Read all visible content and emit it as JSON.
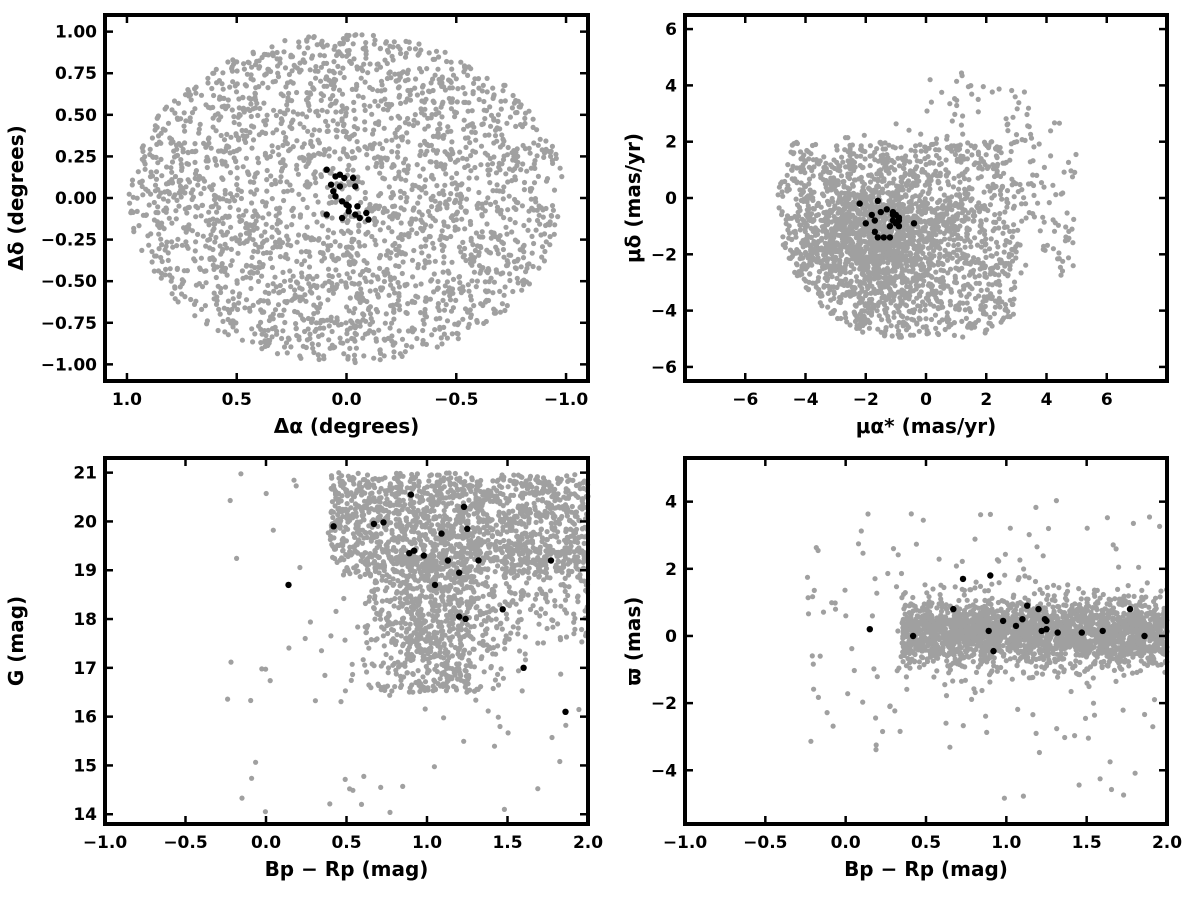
{
  "colors": {
    "field": "#a0a0a0",
    "members": "#000000"
  },
  "chart_data": [
    {
      "type": "scatter",
      "xlabel": "Δα (degrees)",
      "ylabel": "Δδ (degrees)",
      "xlim": [
        1.1,
        -1.1
      ],
      "ylim": [
        -1.1,
        1.1
      ],
      "xticks": [
        "1.0",
        "0.5",
        "0.0",
        "−0.5",
        "−1.0"
      ],
      "xtick_values": [
        1.0,
        0.5,
        0.0,
        -0.5,
        -1.0
      ],
      "yticks": [
        "−1.00",
        "−0.75",
        "−0.50",
        "−0.25",
        "0.00",
        "0.25",
        "0.50",
        "0.75",
        "1.00"
      ],
      "ytick_values": [
        -1.0,
        -0.75,
        -0.5,
        -0.25,
        0.0,
        0.25,
        0.5,
        0.75,
        1.0
      ],
      "series": [
        {
          "role": "field",
          "n_points": 2500,
          "distribution": "uniform disk",
          "center": [
            0,
            0
          ],
          "radius": 1.0
        },
        {
          "role": "members",
          "points": [
            [
              0.09,
              0.17
            ],
            [
              0.05,
              0.13
            ],
            [
              0.03,
              0.14
            ],
            [
              0.01,
              0.12
            ],
            [
              -0.03,
              0.12
            ],
            [
              0.07,
              0.08
            ],
            [
              0.03,
              0.07
            ],
            [
              0.06,
              0.04
            ],
            [
              0.05,
              0.01
            ],
            [
              0.02,
              -0.02
            ],
            [
              -0.01,
              -0.05
            ],
            [
              0.0,
              -0.04
            ],
            [
              -0.01,
              -0.08
            ],
            [
              -0.04,
              -0.1
            ],
            [
              -0.06,
              -0.12
            ],
            [
              -0.09,
              -0.09
            ],
            [
              -0.1,
              -0.13
            ],
            [
              -0.04,
              0.07
            ],
            [
              0.09,
              -0.1
            ],
            [
              0.02,
              -0.12
            ],
            [
              -0.05,
              -0.05
            ]
          ]
        }
      ]
    },
    {
      "type": "scatter",
      "xlabel": "μα* (mas/yr)",
      "ylabel": "μδ (mas/yr)",
      "xlim": [
        -8,
        8
      ],
      "ylim": [
        -6.5,
        6.5
      ],
      "xticks": [
        "−6",
        "−4",
        "−2",
        "0",
        "2",
        "4",
        "6"
      ],
      "xtick_values": [
        -6,
        -4,
        -2,
        0,
        2,
        4,
        6
      ],
      "yticks": [
        "−6",
        "−4",
        "−2",
        "0",
        "2",
        "4",
        "6"
      ],
      "ytick_values": [
        -6,
        -4,
        -2,
        0,
        2,
        4,
        6
      ],
      "series": [
        {
          "role": "field",
          "n_points": 2700,
          "distribution": "dense clump near (-1.5,-1.5), bounded by circle r=5 centred at (0,-0.3), sparse tail to (4.5,4.5)"
        },
        {
          "role": "members",
          "points": [
            [
              -2.2,
              -0.2
            ],
            [
              -1.6,
              -0.1
            ],
            [
              -1.1,
              -0.5
            ],
            [
              -1.3,
              -0.4
            ],
            [
              -1.0,
              -0.6
            ],
            [
              -0.9,
              -0.8
            ],
            [
              -1.1,
              -0.8
            ],
            [
              -1.2,
              -1.0
            ],
            [
              -1.0,
              -0.9
            ],
            [
              -0.9,
              -1.0
            ],
            [
              -0.4,
              -0.9
            ],
            [
              -1.7,
              -0.8
            ],
            [
              -1.8,
              -0.6
            ],
            [
              -1.7,
              -1.2
            ],
            [
              -1.6,
              -1.4
            ],
            [
              -1.4,
              -1.4
            ],
            [
              -1.2,
              -1.4
            ],
            [
              -0.9,
              -0.7
            ],
            [
              -1.5,
              -0.5
            ],
            [
              -1.1,
              -0.6
            ],
            [
              -2.0,
              -0.9
            ]
          ]
        }
      ]
    },
    {
      "type": "scatter",
      "xlabel": "Bp − Rp (mag)",
      "ylabel": "G (mag)",
      "xlim": [
        -1.0,
        2.0
      ],
      "ylim": [
        13.8,
        21.3
      ],
      "xticks": [
        "−1.0",
        "−0.5",
        "0.0",
        "0.5",
        "1.0",
        "1.5",
        "2.0"
      ],
      "xtick_values": [
        -1.0,
        -0.5,
        0.0,
        0.5,
        1.0,
        1.5,
        2.0
      ],
      "yticks": [
        "14",
        "15",
        "16",
        "17",
        "18",
        "19",
        "20",
        "21"
      ],
      "ytick_values": [
        14,
        15,
        16,
        17,
        18,
        19,
        20,
        21
      ],
      "series": [
        {
          "role": "field",
          "n_points": 2600,
          "distribution": "dense band at G 19-21 for colour 0.4-2.0; branch towards G 16.5 at colour 0.8-1.3"
        },
        {
          "role": "members",
          "points": [
            [
              0.42,
              19.9
            ],
            [
              0.67,
              19.95
            ],
            [
              0.73,
              19.98
            ],
            [
              0.9,
              20.55
            ],
            [
              1.23,
              20.3
            ],
            [
              1.09,
              19.75
            ],
            [
              1.25,
              19.85
            ],
            [
              0.89,
              19.35
            ],
            [
              0.92,
              19.4
            ],
            [
              0.98,
              19.3
            ],
            [
              1.13,
              19.2
            ],
            [
              1.32,
              19.2
            ],
            [
              1.2,
              18.95
            ],
            [
              1.05,
              18.7
            ],
            [
              0.14,
              18.7
            ],
            [
              1.77,
              19.2
            ],
            [
              1.47,
              18.2
            ],
            [
              1.2,
              18.05
            ],
            [
              1.24,
              18.0
            ],
            [
              1.6,
              17.0
            ],
            [
              1.86,
              16.1
            ]
          ]
        }
      ]
    },
    {
      "type": "scatter",
      "xlabel": "Bp − Rp (mag)",
      "ylabel": "ϖ (mas)",
      "xlim": [
        -1.0,
        2.0
      ],
      "ylim": [
        -5.6,
        5.3
      ],
      "xticks": [
        "−1.0",
        "−0.5",
        "0.0",
        "0.5",
        "1.0",
        "1.5",
        "2.0"
      ],
      "xtick_values": [
        -1.0,
        -0.5,
        0.0,
        0.5,
        1.0,
        1.5,
        2.0
      ],
      "yticks": [
        "−4",
        "−2",
        "0",
        "2",
        "4"
      ],
      "ytick_values": [
        -4,
        -2,
        0,
        2,
        4
      ],
      "series": [
        {
          "role": "field",
          "n_points": 2500,
          "distribution": "horizontal band centred at ϖ≈0.1, colour 0.3-2.0, scatter ≈0.5 mas with wide outliers"
        },
        {
          "role": "members",
          "points": [
            [
              0.15,
              0.2
            ],
            [
              0.42,
              0.0
            ],
            [
              0.67,
              0.8
            ],
            [
              0.73,
              1.7
            ],
            [
              0.9,
              1.8
            ],
            [
              0.92,
              -0.45
            ],
            [
              0.89,
              0.15
            ],
            [
              0.98,
              0.45
            ],
            [
              1.06,
              0.3
            ],
            [
              1.1,
              0.5
            ],
            [
              1.13,
              0.9
            ],
            [
              1.2,
              0.8
            ],
            [
              1.22,
              0.15
            ],
            [
              1.24,
              0.5
            ],
            [
              1.25,
              0.45
            ],
            [
              1.32,
              0.1
            ],
            [
              1.47,
              0.1
            ],
            [
              1.6,
              0.15
            ],
            [
              1.77,
              0.8
            ],
            [
              1.86,
              0.0
            ],
            [
              1.25,
              0.2
            ]
          ]
        }
      ]
    }
  ]
}
